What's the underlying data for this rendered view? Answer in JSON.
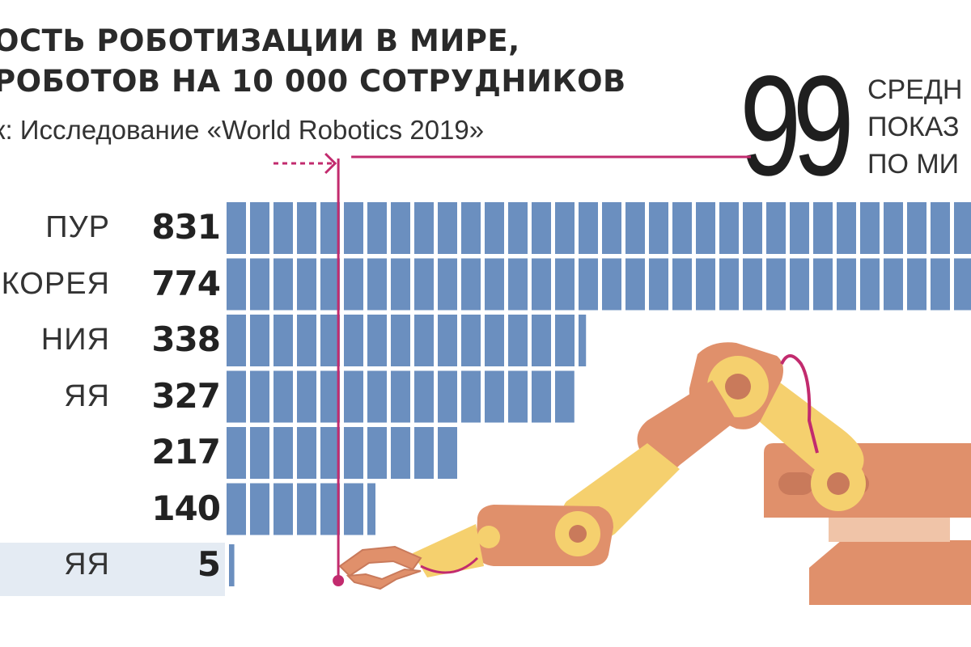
{
  "title_lines": [
    "ОСТЬ РОБОТИЗАЦИИ В МИРЕ,",
    "РОБОТОВ НА 10 000 СОТРУДНИКОВ"
  ],
  "source": "к: Исследование «World Robotics 2019»",
  "average": {
    "value": "99",
    "caption_lines": [
      "СРЕДН",
      "ПОКАЗ",
      "ПО МИ"
    ]
  },
  "colors": {
    "bar": "#6b8fbf",
    "average_marker": "#c22b6e",
    "highlight_band": "#e4ebf3",
    "arm_main": "#e0906b",
    "arm_dark": "#c97a5b",
    "arm_joint": "#f5d06e"
  },
  "icons": [
    "robot-arm-illustration",
    "average-arrow-icon"
  ],
  "chart_data": {
    "type": "bar",
    "orientation": "horizontal",
    "title": "ОСТЬ РОБОТИЗАЦИИ В МИРЕ, РОБОТОВ НА 10 000 СОТРУДНИКОВ",
    "categories": [
      "ПУР",
      "Я КОРЕЯ",
      "НИЯ",
      "ЯЯ",
      "",
      "",
      "ЯЯ"
    ],
    "values": [
      831,
      774,
      338,
      327,
      217,
      140,
      5
    ],
    "value_labels": [
      "831",
      "774",
      "338",
      "327",
      "217",
      "140",
      "5"
    ],
    "reference_line": {
      "value": 99
    },
    "xlim": [
      0,
      700
    ],
    "highlighted_category_index": 6,
    "bar_style": "segmented",
    "grid": false,
    "legend": "none"
  }
}
